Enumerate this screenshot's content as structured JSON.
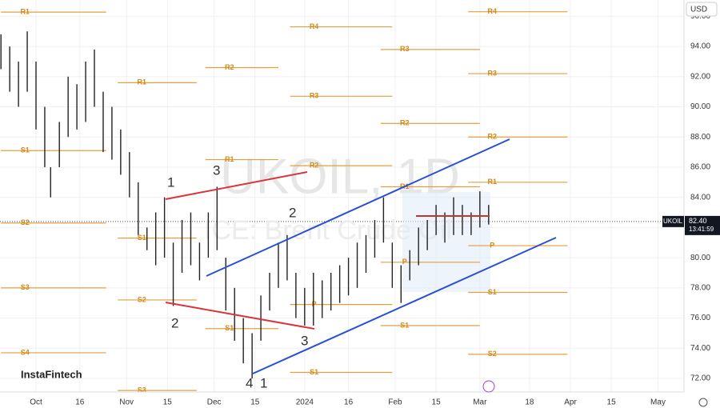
{
  "brand": "InstaFintech",
  "chart_data": {
    "type": "ohlc",
    "title": "UKOIL, 1D",
    "subtitle": "ICE: Brent Crude Oil",
    "currency": "USD",
    "symbol": "UKOIL",
    "countdown": "13:41:59",
    "last_price": {
      "value": 82.4,
      "label": "82.40"
    },
    "x": [
      -12,
      -9,
      -6,
      -3,
      0,
      3,
      5,
      8,
      11,
      14,
      17,
      20,
      23,
      26,
      29,
      32,
      35,
      38,
      41,
      44,
      47,
      50,
      53,
      56,
      59,
      62,
      65,
      68,
      71,
      74,
      77,
      80,
      83,
      86,
      89,
      92,
      95,
      98,
      101,
      104,
      107,
      110,
      113,
      116,
      119,
      122,
      125,
      128,
      131,
      134,
      137,
      140,
      143,
      146,
      149,
      152,
      155
    ],
    "high": [
      94.8,
      94,
      93,
      95,
      93,
      90,
      86,
      89,
      92,
      91.5,
      93,
      93.8,
      91,
      90,
      88.5,
      87,
      85,
      82,
      83,
      84,
      81,
      82.5,
      83,
      81,
      83,
      84.7,
      80,
      78,
      76,
      75,
      77.5,
      79,
      81,
      81.5,
      79,
      78,
      79,
      78.5,
      79,
      79.5,
      80,
      81,
      81.5,
      82.5,
      84,
      81,
      79.5,
      80.5,
      82,
      82.5,
      83.5,
      83,
      84,
      83.5,
      83,
      84.4,
      83.5
    ],
    "low": [
      92.5,
      91,
      90,
      91,
      88.5,
      86,
      84,
      86,
      88,
      88.5,
      89,
      90,
      87,
      86.5,
      85.5,
      84,
      81.5,
      80.5,
      79.5,
      80,
      76.8,
      79,
      79.5,
      78.5,
      80,
      80.5,
      76.5,
      74.5,
      73,
      72,
      74.5,
      76.5,
      78,
      78.5,
      76,
      75.5,
      75.5,
      76,
      76.5,
      77,
      77.5,
      78,
      79,
      80,
      81,
      78,
      77,
      78.5,
      79.5,
      80.5,
      81.5,
      81,
      81.5,
      81.5,
      81.5,
      82,
      82.2
    ],
    "color": "#222",
    "ylim": [
      71.1,
      97.08
    ],
    "yticks": [
      {
        "value": 72,
        "label": "72.00"
      },
      {
        "value": 74,
        "label": "74.00"
      },
      {
        "value": 76,
        "label": "76.00"
      },
      {
        "value": 78,
        "label": "78.00"
      },
      {
        "value": 80,
        "label": "80.00"
      },
      {
        "value": 82,
        "label": "82.00"
      },
      {
        "value": 84,
        "label": "84.00"
      },
      {
        "value": 86,
        "label": "86.00"
      },
      {
        "value": 88,
        "label": "88.00"
      },
      {
        "value": 90,
        "label": "90.00"
      },
      {
        "value": 92,
        "label": "92.00"
      },
      {
        "value": 94,
        "label": "94.00"
      },
      {
        "value": 96,
        "label": "96.00"
      }
    ],
    "xlim": [
      -12.33,
      221.9
    ],
    "xticks": [
      {
        "value": 0,
        "label": "Oct"
      },
      {
        "value": 15,
        "label": "16"
      },
      {
        "value": 31,
        "label": "Nov"
      },
      {
        "value": 45,
        "label": "15"
      },
      {
        "value": 61,
        "label": "Dec"
      },
      {
        "value": 75,
        "label": "15"
      },
      {
        "value": 92,
        "label": "2024"
      },
      {
        "value": 107,
        "label": "16"
      },
      {
        "value": 123,
        "label": "Feb"
      },
      {
        "value": 137,
        "label": "15"
      },
      {
        "value": 152,
        "label": "Mar"
      },
      {
        "value": 169,
        "label": "18"
      },
      {
        "value": 183,
        "label": "Apr"
      },
      {
        "value": 197,
        "label": "15"
      },
      {
        "value": 213,
        "label": "May"
      }
    ],
    "grid": true,
    "levels": [
      {
        "label": "R1",
        "value": 96.28,
        "start": -12,
        "end": 24
      },
      {
        "label": "S1",
        "value": 87.1,
        "start": -12,
        "end": 24
      },
      {
        "label": "S2",
        "value": 82.3,
        "start": -12,
        "end": 24
      },
      {
        "label": "S3",
        "value": 78,
        "start": -12,
        "end": 24
      },
      {
        "label": "S4",
        "value": 73.7,
        "start": -12,
        "end": 24
      },
      {
        "label": "R1",
        "value": 91.6,
        "start": 28,
        "end": 55
      },
      {
        "label": "S1",
        "value": 81.3,
        "start": 28,
        "end": 55
      },
      {
        "label": "S2",
        "value": 77.2,
        "start": 28,
        "end": 55
      },
      {
        "label": "S3",
        "value": 71.2,
        "start": 28,
        "end": 55
      },
      {
        "label": "R2",
        "value": 92.6,
        "start": 58,
        "end": 83
      },
      {
        "label": "R1",
        "value": 86.5,
        "start": 58,
        "end": 83
      },
      {
        "label": "S1",
        "value": 75.3,
        "start": 58,
        "end": 83
      },
      {
        "label": "R4",
        "value": 95.3,
        "start": 87,
        "end": 122
      },
      {
        "label": "R3",
        "value": 90.7,
        "start": 87,
        "end": 122
      },
      {
        "label": "R2",
        "value": 86.1,
        "start": 87,
        "end": 122
      },
      {
        "label": "P",
        "value": 76.9,
        "start": 87,
        "end": 122
      },
      {
        "label": "S1",
        "value": 72.4,
        "start": 87,
        "end": 122
      },
      {
        "label": "R3",
        "value": 93.8,
        "start": 118,
        "end": 152
      },
      {
        "label": "R2",
        "value": 88.9,
        "start": 118,
        "end": 152
      },
      {
        "label": "R1",
        "value": 84.7,
        "start": 118,
        "end": 152
      },
      {
        "label": "P",
        "value": 79.7,
        "start": 118,
        "end": 152
      },
      {
        "label": "S1",
        "value": 75.5,
        "start": 118,
        "end": 152
      },
      {
        "label": "R4",
        "value": 96.3,
        "start": 148,
        "end": 182
      },
      {
        "label": "R3",
        "value": 92.2,
        "start": 148,
        "end": 182
      },
      {
        "label": "R2",
        "value": 88,
        "start": 148,
        "end": 182
      },
      {
        "label": "R1",
        "value": 85,
        "start": 148,
        "end": 182
      },
      {
        "label": "P",
        "value": 80.8,
        "start": 148,
        "end": 182
      },
      {
        "label": "S1",
        "value": 77.7,
        "start": 148,
        "end": 182
      },
      {
        "label": "S2",
        "value": 73.6,
        "start": 148,
        "end": 182
      }
    ],
    "level_color": "#e0a040",
    "annotations": [
      {
        "text": "1"
      },
      {
        "text": "3"
      },
      {
        "text": "2"
      },
      {
        "text": "4"
      },
      {
        "text": "1"
      },
      {
        "text": "2"
      },
      {
        "text": "3"
      }
    ]
  }
}
